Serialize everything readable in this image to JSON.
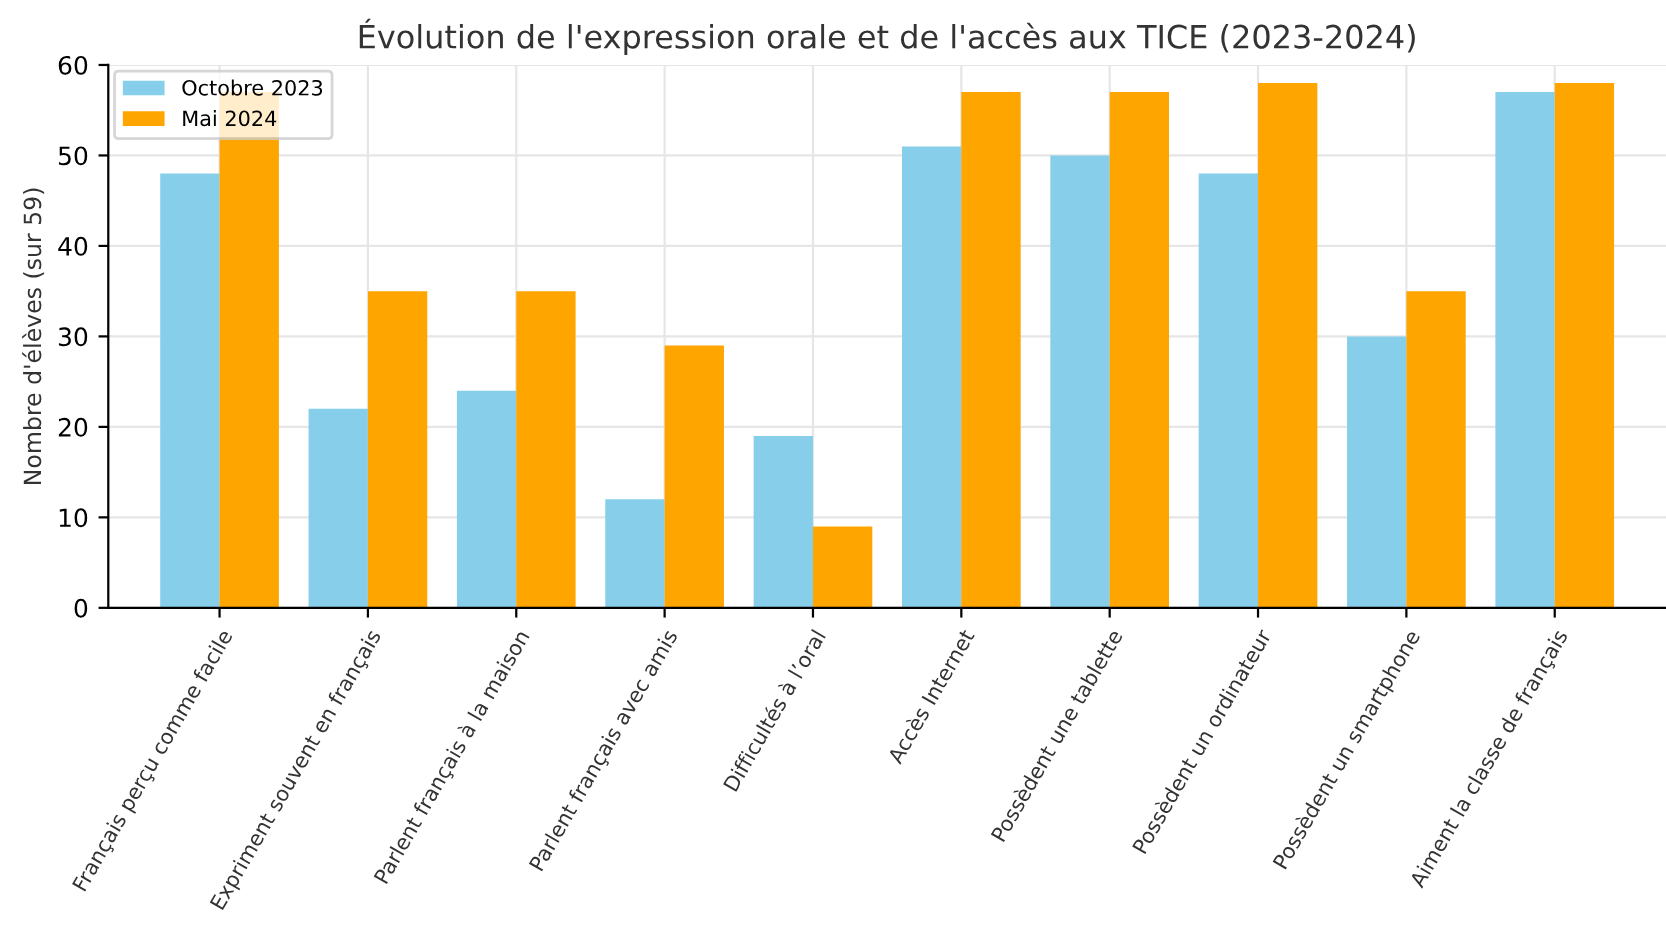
{
  "chart_data": {
    "type": "bar",
    "title": "Évolution de l'expression orale et de l'accès aux TICE (2023-2024)",
    "ylabel": "Nombre d'élèves (sur 59)",
    "categories": [
      "Français perçu comme facile",
      "Expriment souvent en français",
      "Parlent français à la maison",
      "Parlent français avec amis",
      "Difficultés à l’oral",
      "Accès Internet",
      "Possèdent une tablette",
      "Possèdent un ordinateur",
      "Possèdent un smartphone",
      "Aiment la classe de français"
    ],
    "series": [
      {
        "name": "Octobre 2023",
        "color": "#87ceeb",
        "values": [
          48,
          22,
          24,
          12,
          19,
          51,
          50,
          48,
          30,
          57
        ]
      },
      {
        "name": "Mai 2024",
        "color": "#ffa500",
        "values": [
          57,
          35,
          35,
          29,
          9,
          57,
          57,
          58,
          35,
          58
        ]
      }
    ],
    "ylim": [
      0,
      60
    ],
    "yticks": [
      0,
      10,
      20,
      30,
      40,
      50,
      60
    ],
    "grid": true,
    "legend": "top left"
  }
}
